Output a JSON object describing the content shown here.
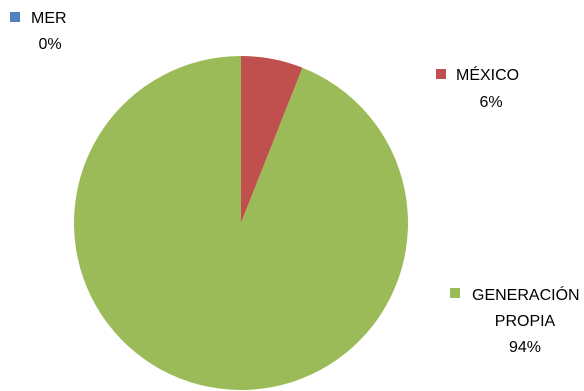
{
  "chart_data": {
    "type": "pie",
    "slices": [
      {
        "name": "MER",
        "value": 0,
        "label": "0%",
        "color": "#4F81BD"
      },
      {
        "name": "MÉXICO",
        "value": 6,
        "label": "6%",
        "color": "#C0504D"
      },
      {
        "name": "GENERACIÓN PROPIA",
        "name_lines": [
          "GENERACIÓN",
          "PROPIA"
        ],
        "value": 94,
        "label": "94%",
        "color": "#9BBB59"
      }
    ],
    "legend_position": "right"
  }
}
